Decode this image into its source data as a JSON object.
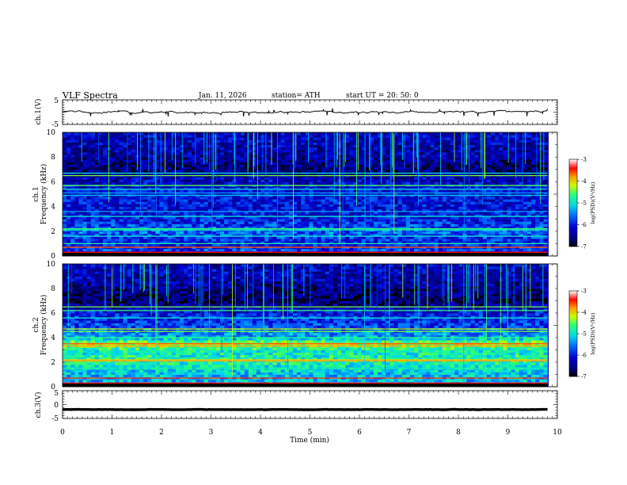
{
  "header": {
    "title": "VLF  Spectra",
    "date": "Jan.  11,  2026",
    "station": "station= ATH",
    "start": "start  UT  =   20: 50: 0"
  },
  "chart_data": [
    {
      "type": "line",
      "panel": "ch1-waveform",
      "ylabel": "ch.1(V)",
      "ylim": [
        -5,
        5
      ],
      "yticks": [
        "5",
        "-5"
      ],
      "xlim": [
        0,
        10
      ],
      "trace_end_min": 9.8,
      "mean_level": 0,
      "noise_amplitude": 0.5
    },
    {
      "type": "heatmap",
      "panel": "ch1-spectrogram",
      "ylabel_channel": "ch.1",
      "ylabel": "Frequency  (kHz)",
      "ylim": [
        0,
        10
      ],
      "yticks": [
        "0",
        "2",
        "4",
        "6",
        "8",
        "10"
      ],
      "xlim": [
        0,
        9.8
      ],
      "colorbar_label": "log(PSD)(V²/Hz)",
      "colorbar_ticks": [
        "-3",
        "-4",
        "-5",
        "-6",
        "-7"
      ],
      "colorbar_range": [
        -7,
        -3
      ],
      "band_profile_khz": [
        [
          0,
          -6.2
        ],
        [
          0.5,
          -5.8
        ],
        [
          1,
          -6.0
        ],
        [
          2,
          -5.6
        ],
        [
          3,
          -6.0
        ],
        [
          4,
          -6.1
        ],
        [
          5,
          -6.0
        ],
        [
          6,
          -6.2
        ],
        [
          7,
          -6.6
        ],
        [
          8,
          -6.4
        ],
        [
          9,
          -6.3
        ],
        [
          10,
          -6.2
        ]
      ],
      "lines_khz": [
        [
          0.3,
          -3.4
        ],
        [
          0.7,
          -3.6
        ],
        [
          1.0,
          -4.8
        ],
        [
          1.6,
          -5.0
        ],
        [
          2.1,
          -4.9
        ],
        [
          2.2,
          -4.6
        ],
        [
          3.2,
          -5.0
        ],
        [
          3.6,
          -5.3
        ],
        [
          4.9,
          -5.2
        ],
        [
          5.1,
          -5.4
        ],
        [
          5.4,
          -5.0
        ],
        [
          5.7,
          -4.5
        ],
        [
          6.5,
          -4.4
        ],
        [
          6.7,
          -5.0
        ]
      ],
      "spike_rate": 0.35,
      "spike_from_khz": 6
    },
    {
      "type": "heatmap",
      "panel": "ch2-spectrogram",
      "ylabel_channel": "ch.2",
      "ylabel": "Frequency  (kHz)",
      "ylim": [
        0,
        10
      ],
      "yticks": [
        "0",
        "2",
        "4",
        "6",
        "8",
        "10"
      ],
      "xlim": [
        0,
        9.8
      ],
      "colorbar_label": "log(PSD)(V²/Hz)",
      "colorbar_ticks": [
        "-3",
        "-4",
        "-5",
        "-6",
        "-7"
      ],
      "colorbar_range": [
        -7,
        -3
      ],
      "band_profile_khz": [
        [
          0,
          -5.3
        ],
        [
          1,
          -5.2
        ],
        [
          2,
          -4.8
        ],
        [
          3,
          -4.9
        ],
        [
          3.5,
          -4.2
        ],
        [
          4,
          -5.3
        ],
        [
          5,
          -5.8
        ],
        [
          6,
          -6.0
        ],
        [
          7,
          -6.7
        ],
        [
          8,
          -6.5
        ],
        [
          9,
          -6.3
        ],
        [
          10,
          -6.2
        ]
      ],
      "lines_khz": [
        [
          0.3,
          -3.4
        ],
        [
          0.7,
          -3.5
        ],
        [
          1.5,
          -4.8
        ],
        [
          2.1,
          -3.8
        ],
        [
          2.2,
          -4.0
        ],
        [
          3.3,
          -3.8
        ],
        [
          3.5,
          -3.6
        ],
        [
          4.0,
          -4.6
        ],
        [
          4.5,
          -4.4
        ],
        [
          4.7,
          -4.2
        ],
        [
          5.6,
          -5.0
        ],
        [
          6.2,
          -4.6
        ],
        [
          6.5,
          -4.4
        ]
      ],
      "spike_rate": 0.3,
      "spike_from_khz": 6
    },
    {
      "type": "line",
      "panel": "ch3-waveform",
      "ylabel": "ch.3(V)",
      "ylim": [
        -5,
        5
      ],
      "yticks": [
        "5",
        "0",
        "-5"
      ],
      "xlim": [
        0,
        10
      ],
      "trace_end_min": 9.8,
      "mean_level": -1.8,
      "noise_amplitude": 0.05
    },
    {
      "type": "axis",
      "xlabel": "Time  (min)",
      "xticks": [
        "0",
        "1",
        "2",
        "3",
        "4",
        "5",
        "6",
        "7",
        "8",
        "9",
        "10"
      ]
    }
  ]
}
